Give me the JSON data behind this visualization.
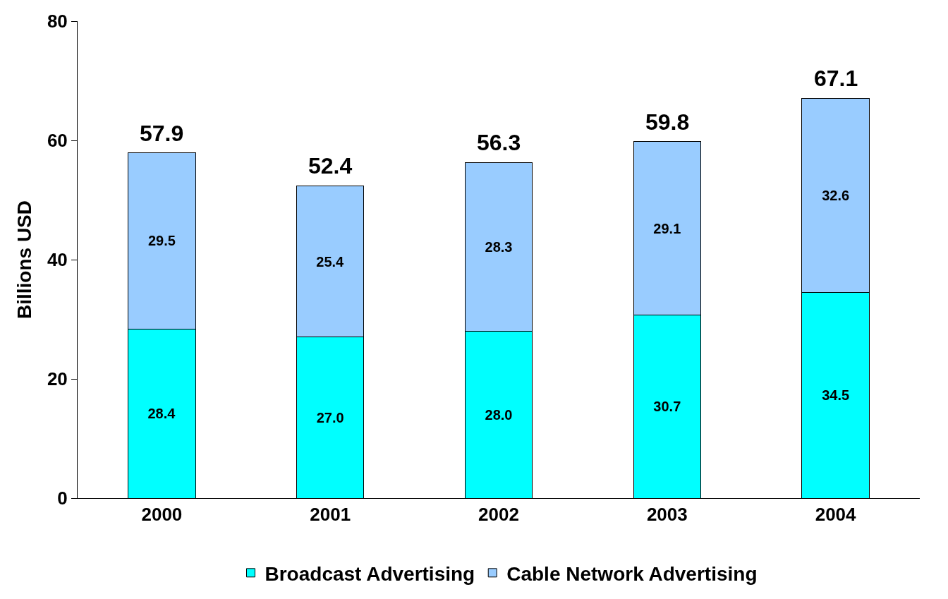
{
  "chart_data": {
    "type": "bar",
    "ylabel": "Billions USD",
    "categories": [
      "2000",
      "2001",
      "2002",
      "2003",
      "2004"
    ],
    "stacked": true,
    "series": [
      {
        "name": "Broadcast Advertising",
        "color": "#00ffff",
        "values": [
          28.4,
          27.0,
          28.0,
          30.7,
          34.5
        ],
        "value_labels": [
          "28.4",
          "27.0",
          "28.0",
          "30.7",
          "34.5"
        ]
      },
      {
        "name": "Cable Network Advertising",
        "color": "#99ccff",
        "values": [
          29.5,
          25.4,
          28.3,
          29.1,
          32.6
        ],
        "value_labels": [
          "29.5",
          "25.4",
          "28.3",
          "29.1",
          "32.6"
        ]
      }
    ],
    "totals": [
      "57.9",
      "52.4",
      "56.3",
      "59.8",
      "67.1"
    ],
    "ylim": [
      0,
      80
    ],
    "yticks": [
      0,
      20,
      40,
      60,
      80
    ],
    "grid": false,
    "legend": "bottom"
  }
}
